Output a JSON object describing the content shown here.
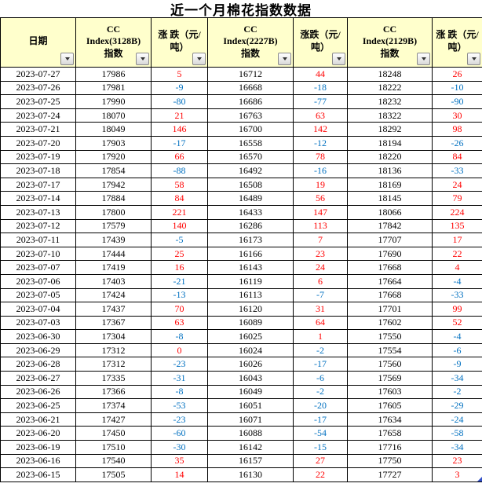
{
  "title": "近一个月棉花指数数据",
  "colors": {
    "positive": "#FF0000",
    "negative": "#0070C0",
    "header_bg": "#FFFFCC",
    "border": "#000000",
    "corner_marker": "#3350C8"
  },
  "table": {
    "columns": [
      {
        "field": "date",
        "label": "日期",
        "name": "column-header-date"
      },
      {
        "field": "idx3128",
        "label": "CC\nIndex(3128B)\n指数",
        "name": "column-header-cc3128-index"
      },
      {
        "field": "chg3128",
        "label": "涨 跌（元/\n吨）",
        "name": "column-header-cc3128-change"
      },
      {
        "field": "idx2227",
        "label": "CC\nIndex(2227B)\n指数",
        "name": "column-header-cc2227-index"
      },
      {
        "field": "chg2227",
        "label": "涨跌（元/\n吨）",
        "name": "column-header-cc2227-change"
      },
      {
        "field": "idx2129",
        "label": "CC\nIndex(2129B)\n指数",
        "name": "column-header-cc2129-index"
      },
      {
        "field": "chg2129",
        "label": "涨 跌（元/\n吨）",
        "name": "column-header-cc2129-change"
      }
    ],
    "change_fields": [
      "chg3128",
      "chg2227",
      "chg2129"
    ],
    "rows": [
      {
        "date": "2023-07-27",
        "idx3128": "17986",
        "chg3128": "5",
        "idx2227": "16712",
        "chg2227": "44",
        "idx2129": "18248",
        "chg2129": "26"
      },
      {
        "date": "2023-07-26",
        "idx3128": "17981",
        "chg3128": "-9",
        "idx2227": "16668",
        "chg2227": "-18",
        "idx2129": "18222",
        "chg2129": "-10"
      },
      {
        "date": "2023-07-25",
        "idx3128": "17990",
        "chg3128": "-80",
        "idx2227": "16686",
        "chg2227": "-77",
        "idx2129": "18232",
        "chg2129": "-90"
      },
      {
        "date": "2023-07-24",
        "idx3128": "18070",
        "chg3128": "21",
        "idx2227": "16763",
        "chg2227": "63",
        "idx2129": "18322",
        "chg2129": "30"
      },
      {
        "date": "2023-07-21",
        "idx3128": "18049",
        "chg3128": "146",
        "idx2227": "16700",
        "chg2227": "142",
        "idx2129": "18292",
        "chg2129": "98"
      },
      {
        "date": "2023-07-20",
        "idx3128": "17903",
        "chg3128": "-17",
        "idx2227": "16558",
        "chg2227": "-12",
        "idx2129": "18194",
        "chg2129": "-26"
      },
      {
        "date": "2023-07-19",
        "idx3128": "17920",
        "chg3128": "66",
        "idx2227": "16570",
        "chg2227": "78",
        "idx2129": "18220",
        "chg2129": "84"
      },
      {
        "date": "2023-07-18",
        "idx3128": "17854",
        "chg3128": "-88",
        "idx2227": "16492",
        "chg2227": "-16",
        "idx2129": "18136",
        "chg2129": "-33"
      },
      {
        "date": "2023-07-17",
        "idx3128": "17942",
        "chg3128": "58",
        "idx2227": "16508",
        "chg2227": "19",
        "idx2129": "18169",
        "chg2129": "24"
      },
      {
        "date": "2023-07-14",
        "idx3128": "17884",
        "chg3128": "84",
        "idx2227": "16489",
        "chg2227": "56",
        "idx2129": "18145",
        "chg2129": "79"
      },
      {
        "date": "2023-07-13",
        "idx3128": "17800",
        "chg3128": "221",
        "idx2227": "16433",
        "chg2227": "147",
        "idx2129": "18066",
        "chg2129": "224"
      },
      {
        "date": "2023-07-12",
        "idx3128": "17579",
        "chg3128": "140",
        "idx2227": "16286",
        "chg2227": "113",
        "idx2129": "17842",
        "chg2129": "135"
      },
      {
        "date": "2023-07-11",
        "idx3128": "17439",
        "chg3128": "-5",
        "idx2227": "16173",
        "chg2227": "7",
        "idx2129": "17707",
        "chg2129": "17"
      },
      {
        "date": "2023-07-10",
        "idx3128": "17444",
        "chg3128": "25",
        "idx2227": "16166",
        "chg2227": "23",
        "idx2129": "17690",
        "chg2129": "22"
      },
      {
        "date": "2023-07-07",
        "idx3128": "17419",
        "chg3128": "16",
        "idx2227": "16143",
        "chg2227": "24",
        "idx2129": "17668",
        "chg2129": "4"
      },
      {
        "date": "2023-07-06",
        "idx3128": "17403",
        "chg3128": "-21",
        "idx2227": "16119",
        "chg2227": "6",
        "idx2129": "17664",
        "chg2129": "-4"
      },
      {
        "date": "2023-07-05",
        "idx3128": "17424",
        "chg3128": "-13",
        "idx2227": "16113",
        "chg2227": "-7",
        "idx2129": "17668",
        "chg2129": "-33"
      },
      {
        "date": "2023-07-04",
        "idx3128": "17437",
        "chg3128": "70",
        "idx2227": "16120",
        "chg2227": "31",
        "idx2129": "17701",
        "chg2129": "99"
      },
      {
        "date": "2023-07-03",
        "idx3128": "17367",
        "chg3128": "63",
        "idx2227": "16089",
        "chg2227": "64",
        "idx2129": "17602",
        "chg2129": "52"
      },
      {
        "date": "2023-06-30",
        "idx3128": "17304",
        "chg3128": "-8",
        "idx2227": "16025",
        "chg2227": "1",
        "idx2129": "17550",
        "chg2129": "-4"
      },
      {
        "date": "2023-06-29",
        "idx3128": "17312",
        "chg3128": "0",
        "idx2227": "16024",
        "chg2227": "-2",
        "idx2129": "17554",
        "chg2129": "-6"
      },
      {
        "date": "2023-06-28",
        "idx3128": "17312",
        "chg3128": "-23",
        "idx2227": "16026",
        "chg2227": "-17",
        "idx2129": "17560",
        "chg2129": "-9"
      },
      {
        "date": "2023-06-27",
        "idx3128": "17335",
        "chg3128": "-31",
        "idx2227": "16043",
        "chg2227": "-6",
        "idx2129": "17569",
        "chg2129": "-34"
      },
      {
        "date": "2023-06-26",
        "idx3128": "17366",
        "chg3128": "-8",
        "idx2227": "16049",
        "chg2227": "-2",
        "idx2129": "17603",
        "chg2129": "-2"
      },
      {
        "date": "2023-06-25",
        "idx3128": "17374",
        "chg3128": "-53",
        "idx2227": "16051",
        "chg2227": "-20",
        "idx2129": "17605",
        "chg2129": "-29"
      },
      {
        "date": "2023-06-21",
        "idx3128": "17427",
        "chg3128": "-23",
        "idx2227": "16071",
        "chg2227": "-17",
        "idx2129": "17634",
        "chg2129": "-24"
      },
      {
        "date": "2023-06-20",
        "idx3128": "17450",
        "chg3128": "-60",
        "idx2227": "16088",
        "chg2227": "-54",
        "idx2129": "17658",
        "chg2129": "-58"
      },
      {
        "date": "2023-06-19",
        "idx3128": "17510",
        "chg3128": "-30",
        "idx2227": "16142",
        "chg2227": "-15",
        "idx2129": "17716",
        "chg2129": "-34"
      },
      {
        "date": "2023-06-16",
        "idx3128": "17540",
        "chg3128": "35",
        "idx2227": "16157",
        "chg2227": "27",
        "idx2129": "17750",
        "chg2129": "23"
      },
      {
        "date": "2023-06-15",
        "idx3128": "17505",
        "chg3128": "14",
        "idx2227": "16130",
        "chg2227": "22",
        "idx2129": "17727",
        "chg2129": "3"
      }
    ]
  }
}
